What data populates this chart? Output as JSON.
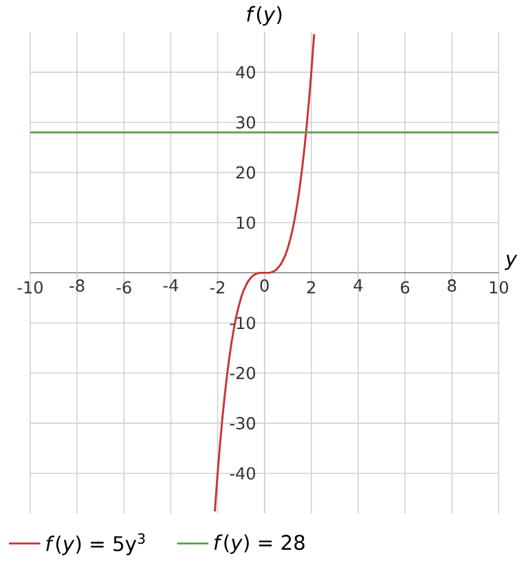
{
  "chart_data": {
    "type": "line",
    "xlabel": "*y*",
    "ylabel": "*f*(*y*)",
    "xlim": [
      -10,
      10
    ],
    "ylim": [
      -48,
      48
    ],
    "xticks": [
      -10,
      -8,
      -6,
      -4,
      -2,
      0,
      2,
      4,
      6,
      8,
      10
    ],
    "yticks": [
      -40,
      -30,
      -20,
      -10,
      10,
      20,
      30,
      40
    ],
    "grid": true,
    "legend": "bottom",
    "marker": "none",
    "line_style": "solid",
    "series": [
      {
        "name": "*f*(*y*) = 5y$^{3}$",
        "color": "#cc3333",
        "x": [
          -2.12,
          -2,
          -1.9,
          -1.8,
          -1.7,
          -1.6,
          -1.5,
          -1.4,
          -1.3,
          -1.2,
          -1.1,
          -1,
          -0.9,
          -0.8,
          -0.7,
          -0.6,
          -0.5,
          -0.4,
          -0.3,
          -0.2,
          -0.1,
          0,
          0.1,
          0.2,
          0.3,
          0.4,
          0.5,
          0.6,
          0.7,
          0.8,
          0.9,
          1,
          1.1,
          1.2,
          1.3,
          1.4,
          1.5,
          1.6,
          1.7,
          1.8,
          1.9,
          2,
          2.12
        ],
        "values": [
          -47.6,
          -40,
          -34.3,
          -29.2,
          -24.6,
          -20.5,
          -16.9,
          -13.7,
          -11,
          -8.6,
          -6.7,
          -5,
          -3.6,
          -2.6,
          -1.7,
          -1.1,
          -0.6,
          -0.3,
          -0.1,
          0,
          0,
          0,
          0,
          0,
          0.1,
          0.3,
          0.6,
          1.1,
          1.7,
          2.6,
          3.6,
          5,
          6.7,
          8.6,
          11,
          13.7,
          16.9,
          20.5,
          24.6,
          29.2,
          34.3,
          40,
          47.6
        ]
      },
      {
        "name": "*f*(*y*) = 28",
        "color": "#5a9e4b",
        "x": [
          -10,
          10
        ],
        "values": [
          28,
          28
        ]
      }
    ]
  }
}
